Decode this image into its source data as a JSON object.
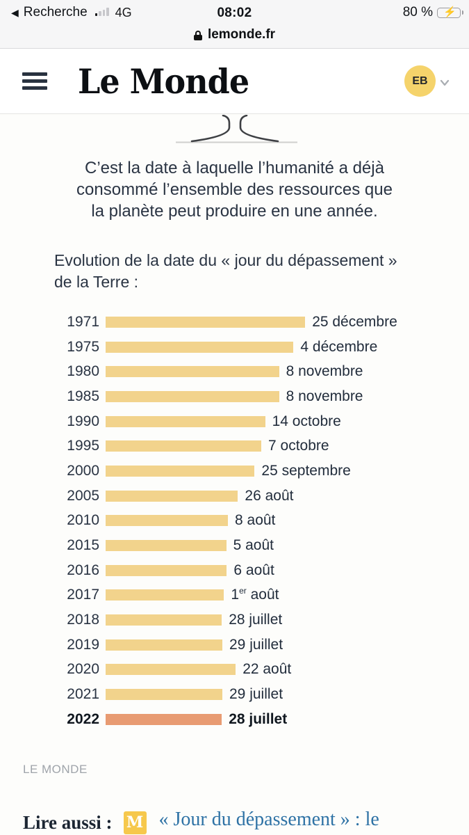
{
  "status_bar": {
    "back_label": "Recherche",
    "network": "4G",
    "time": "08:02",
    "battery_percent": "80 %"
  },
  "url_bar": {
    "domain": "lemonde.fr"
  },
  "header": {
    "logo_text": "Le Monde",
    "avatar_initials": "EB"
  },
  "standfirst": "C’est la date à laquelle l’humanité a déjà consommé l’ensemble des ressources que la planète peut produire en une année.",
  "chart_data": {
    "type": "bar",
    "orientation": "horizontal",
    "title": "Evolution de la date du « jour du dépassement » de la Terre :",
    "title_line1": "Evolution de la date du « jour du dépassement »",
    "title_line2": "de la Terre :",
    "categories": [
      "1971",
      "1975",
      "1980",
      "1985",
      "1990",
      "1995",
      "2000",
      "2005",
      "2010",
      "2015",
      "2016",
      "2017",
      "2018",
      "2019",
      "2020",
      "2021",
      "2022"
    ],
    "labels": [
      "25 décembre",
      "4 décembre",
      "8 novembre",
      "8 novembre",
      "14 octobre",
      "7 octobre",
      "25 septembre",
      "26 août",
      "8 août",
      "5 août",
      "6 août",
      "1er août",
      "28 juillet",
      "29 juillet",
      "22 août",
      "29 juillet",
      "28 juillet"
    ],
    "values": [
      359,
      338,
      312,
      312,
      287,
      280,
      268,
      238,
      220,
      217,
      218,
      213,
      209,
      210,
      234,
      210,
      209
    ],
    "value_unit": "day-of-year (bar length proportional)",
    "xlim": [
      0,
      365
    ],
    "bar_color": "#F2D38C",
    "highlight_color": "#E89B72",
    "highlight_category": "2022",
    "grid": false,
    "legend": false,
    "source": "LE MONDE"
  },
  "read_also": {
    "prefix": "Lire aussi :",
    "monogram": "M",
    "link_text": "« Jour du dépassement » : le",
    "link_color": "#2E72A5"
  }
}
